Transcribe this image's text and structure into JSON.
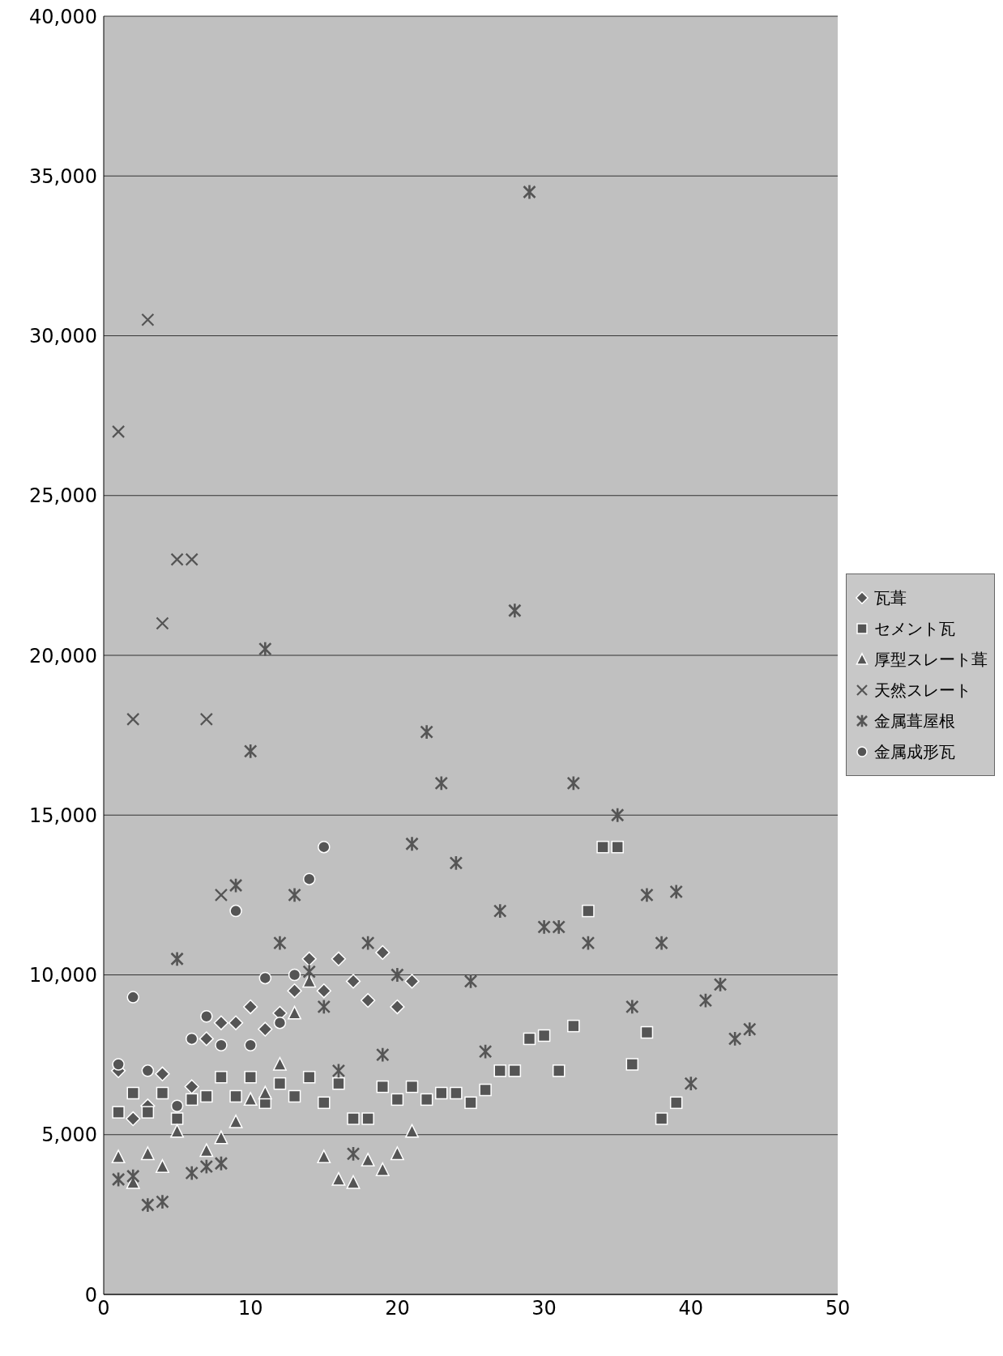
{
  "chart_data": {
    "type": "scatter",
    "xlim": [
      0,
      50
    ],
    "xticks": [
      0,
      10,
      20,
      30,
      40,
      50
    ],
    "ylim": [
      0,
      40000
    ],
    "yticks": [
      {
        "value": 0,
        "label": "0"
      },
      {
        "value": 5000,
        "label": "5,000"
      },
      {
        "value": 10000,
        "label": "10,000"
      },
      {
        "value": 15000,
        "label": "15,000"
      },
      {
        "value": 20000,
        "label": "20,000"
      },
      {
        "value": 25000,
        "label": "25,000"
      },
      {
        "value": 30000,
        "label": "30,000"
      },
      {
        "value": 35000,
        "label": "35,000"
      },
      {
        "value": 40000,
        "label": "40,000"
      }
    ],
    "grid": "y",
    "legend": "right",
    "series": [
      {
        "name": "瓦葺",
        "color": "#555555",
        "marker": "diamond",
        "x": [
          1,
          2,
          3,
          4,
          6,
          7,
          8,
          9,
          10,
          11,
          12,
          13,
          14,
          15,
          16,
          17,
          18,
          19,
          20,
          21
        ],
        "values": [
          7000,
          5500,
          5900,
          6900,
          6500,
          8000,
          8500,
          8500,
          9000,
          8300,
          8800,
          9500,
          10500,
          9500,
          10500,
          9800,
          9200,
          10700,
          9000,
          9800
        ]
      },
      {
        "name": "セメント瓦",
        "color": "#555555",
        "marker": "square",
        "x": [
          1,
          2,
          3,
          4,
          5,
          6,
          7,
          8,
          9,
          10,
          11,
          12,
          13,
          14,
          15,
          16,
          17,
          18,
          19,
          20,
          21,
          22,
          23,
          24,
          25,
          26,
          27,
          28,
          29,
          30,
          31,
          32,
          33,
          34,
          35,
          36,
          37,
          38,
          39
        ],
        "values": [
          5700,
          6300,
          5700,
          6300,
          5500,
          6100,
          6200,
          6800,
          6200,
          6800,
          6000,
          6600,
          6200,
          6800,
          6000,
          6600,
          5500,
          5500,
          6500,
          6100,
          6500,
          6100,
          6300,
          6300,
          6000,
          6400,
          7000,
          7000,
          8000,
          8100,
          7000,
          8400,
          12000,
          14000,
          14000,
          7200,
          8200,
          5500,
          6000
        ]
      },
      {
        "name": "厚型スレート葺",
        "color": "#555555",
        "marker": "triangle",
        "x": [
          1,
          2,
          3,
          4,
          5,
          7,
          8,
          9,
          10,
          11,
          12,
          13,
          14,
          15,
          16,
          17,
          18,
          19,
          20,
          21
        ],
        "values": [
          4300,
          3500,
          4400,
          4000,
          5100,
          4500,
          4900,
          5400,
          6100,
          6300,
          7200,
          8800,
          9800,
          4300,
          3600,
          3500,
          4200,
          3900,
          4400,
          5100
        ]
      },
      {
        "name": "天然スレート",
        "color": "#555555",
        "marker": "cross",
        "x": [
          1,
          2,
          3,
          4,
          5,
          6,
          7,
          8
        ],
        "values": [
          27000,
          18000,
          30500,
          21000,
          23000,
          23000,
          18000,
          12500
        ]
      },
      {
        "name": "金属葺屋根",
        "color": "#555555",
        "x": [
          1,
          2,
          3,
          4,
          5,
          6,
          7,
          8,
          9,
          10,
          11,
          12,
          13,
          14,
          15,
          16,
          17,
          18,
          19,
          20,
          21,
          22,
          23,
          24,
          25,
          26,
          27,
          28,
          29,
          30,
          31,
          32,
          33,
          35,
          36,
          37,
          38,
          39,
          40,
          41,
          42,
          43,
          44
        ],
        "values": [
          3600,
          3700,
          2800,
          2900,
          10500,
          3800,
          4000,
          4100,
          12800,
          17000,
          20200,
          11000,
          12500,
          10100,
          9000,
          7000,
          4400,
          11000,
          7500,
          10000,
          14100,
          17600,
          16000,
          13500,
          9800,
          7600,
          12000,
          21400,
          34500,
          11500,
          11500,
          16000,
          11000,
          15000,
          9000,
          12500,
          11000,
          12600,
          6600,
          9200,
          9700,
          8000,
          8300
        ]
      },
      {
        "name": "金属成形瓦",
        "color": "#555555",
        "marker": "circle",
        "x": [
          1,
          2,
          3,
          5,
          6,
          7,
          8,
          9,
          10,
          11,
          12,
          13,
          14,
          15
        ],
        "values": [
          7200,
          9300,
          7000,
          5900,
          8000,
          8700,
          7800,
          12000,
          7800,
          9900,
          8500,
          10000,
          13000,
          14000
        ]
      }
    ]
  }
}
